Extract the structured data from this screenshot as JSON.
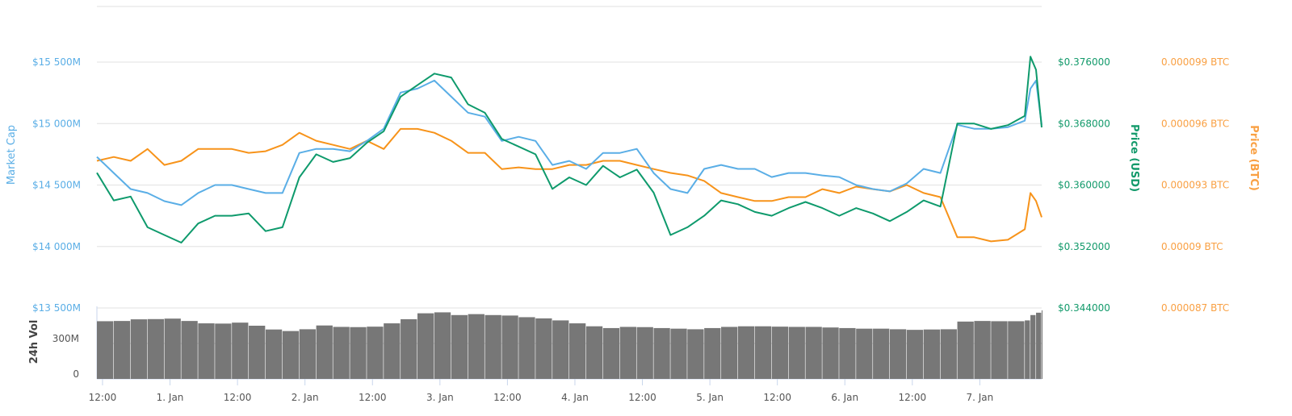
{
  "chart_data": {
    "type": "line",
    "grid": true,
    "legend": "none",
    "colors": {
      "market_cap": "#5aaee6",
      "price_usd": "#0e9a6c",
      "price_btc": "#f7931a",
      "volume": "#777777"
    },
    "x": [
      "Dec 31 11:00",
      "Dec 31 14:00",
      "Dec 31 17:00",
      "Dec 31 20:00",
      "Dec 31 23:00",
      "Jan 1 02:00",
      "Jan 1 05:00",
      "Jan 1 08:00",
      "Jan 1 11:00",
      "Jan 1 14:00",
      "Jan 1 17:00",
      "Jan 1 20:00",
      "Jan 1 23:00",
      "Jan 2 02:00",
      "Jan 2 05:00",
      "Jan 2 08:00",
      "Jan 2 11:00",
      "Jan 2 14:00",
      "Jan 2 17:00",
      "Jan 2 20:00",
      "Jan 2 23:00",
      "Jan 3 02:00",
      "Jan 3 05:00",
      "Jan 3 08:00",
      "Jan 3 11:00",
      "Jan 3 14:00",
      "Jan 3 17:00",
      "Jan 3 20:00",
      "Jan 3 23:00",
      "Jan 4 02:00",
      "Jan 4 05:00",
      "Jan 4 08:00",
      "Jan 4 11:00",
      "Jan 4 14:00",
      "Jan 4 17:00",
      "Jan 4 20:00",
      "Jan 4 23:00",
      "Jan 5 02:00",
      "Jan 5 05:00",
      "Jan 5 08:00",
      "Jan 5 11:00",
      "Jan 5 14:00",
      "Jan 5 17:00",
      "Jan 5 20:00",
      "Jan 5 23:00",
      "Jan 6 02:00",
      "Jan 6 05:00",
      "Jan 6 08:00",
      "Jan 6 11:00",
      "Jan 6 14:00",
      "Jan 6 17:00",
      "Jan 6 20:00",
      "Jan 6 23:00",
      "Jan 7 02:00",
      "Jan 7 05:00",
      "Jan 7 08:00",
      "Jan 7 09:00",
      "Jan 7 10:00",
      "Jan 7 11:00"
    ],
    "x_range": [
      "Dec 31 11:00",
      "Jan 7 11:00"
    ],
    "x_ticks": [
      {
        "at": "Dec 31 12:00",
        "label": "12:00"
      },
      {
        "at": "Jan 1 00:00",
        "label": "1. Jan"
      },
      {
        "at": "Jan 1 12:00",
        "label": "12:00"
      },
      {
        "at": "Jan 2 00:00",
        "label": "2. Jan"
      },
      {
        "at": "Jan 2 12:00",
        "label": "12:00"
      },
      {
        "at": "Jan 3 00:00",
        "label": "3. Jan"
      },
      {
        "at": "Jan 3 12:00",
        "label": "12:00"
      },
      {
        "at": "Jan 4 00:00",
        "label": "4. Jan"
      },
      {
        "at": "Jan 4 12:00",
        "label": "12:00"
      },
      {
        "at": "Jan 5 00:00",
        "label": "5. Jan"
      },
      {
        "at": "Jan 5 12:00",
        "label": "12:00"
      },
      {
        "at": "Jan 6 00:00",
        "label": "6. Jan"
      },
      {
        "at": "Jan 6 12:00",
        "label": "12:00"
      },
      {
        "at": "Jan 7 00:00",
        "label": "7. Jan"
      }
    ],
    "axes": {
      "market_cap": {
        "label": "Market Cap",
        "range": [
          13500,
          15500
        ],
        "unit": "M USD",
        "ticks": [
          {
            "v": 13500,
            "label": "$13 500M"
          },
          {
            "v": 14000,
            "label": "$14 000M"
          },
          {
            "v": 14500,
            "label": "$14 500M"
          },
          {
            "v": 15000,
            "label": "$15 000M"
          },
          {
            "v": 15500,
            "label": "$15 500M"
          }
        ]
      },
      "price_usd": {
        "label": "Price (USD)",
        "range": [
          0.344,
          0.376
        ],
        "ticks": [
          {
            "v": 0.344,
            "label": "$0.344000"
          },
          {
            "v": 0.352,
            "label": "$0.352000"
          },
          {
            "v": 0.36,
            "label": "$0.360000"
          },
          {
            "v": 0.368,
            "label": "$0.368000"
          },
          {
            "v": 0.376,
            "label": "$0.376000"
          }
        ]
      },
      "price_btc": {
        "label": "Price (BTC)",
        "range": [
          8.7e-05,
          9.9e-05
        ],
        "ticks": [
          {
            "v": 8.7e-05,
            "label": "0.000087 BTC"
          },
          {
            "v": 9e-05,
            "label": "0.00009 BTC"
          },
          {
            "v": 9.3e-05,
            "label": "0.000093 BTC"
          },
          {
            "v": 9.6e-05,
            "label": "0.000096 BTC"
          },
          {
            "v": 9.9e-05,
            "label": "0.000099 BTC"
          }
        ]
      },
      "volume": {
        "label": "24h Vol",
        "unit": "M USD",
        "ticks": [
          {
            "v": 0,
            "label": "0"
          },
          {
            "v": 300,
            "label": "300M"
          }
        ]
      }
    },
    "series": [
      {
        "key": "market_cap",
        "axis": "market_cap",
        "values": [
          14729,
          14598,
          14467,
          14435,
          14369,
          14337,
          14435,
          14500,
          14500,
          14467,
          14435,
          14435,
          14761,
          14794,
          14794,
          14775,
          14859,
          14958,
          15252,
          15284,
          15350,
          15219,
          15088,
          15056,
          14859,
          14892,
          14859,
          14663,
          14696,
          14631,
          14761,
          14761,
          14794,
          14598,
          14467,
          14435,
          14631,
          14663,
          14631,
          14631,
          14565,
          14598,
          14598,
          14578,
          14565,
          14500,
          14467,
          14448,
          14513,
          14631,
          14598,
          14990,
          14958,
          14958,
          14971,
          15023,
          15284,
          15350,
          14990
        ]
      },
      {
        "key": "price_usd",
        "axis": "price_usd",
        "values": [
          0.3616,
          0.358,
          0.3585,
          0.3545,
          0.3535,
          0.3525,
          0.355,
          0.356,
          0.356,
          0.3563,
          0.354,
          0.3545,
          0.361,
          0.364,
          0.363,
          0.3635,
          0.3655,
          0.367,
          0.3715,
          0.373,
          0.3745,
          0.374,
          0.3705,
          0.3694,
          0.366,
          0.365,
          0.364,
          0.3595,
          0.361,
          0.36,
          0.3625,
          0.361,
          0.362,
          0.359,
          0.3535,
          0.3545,
          0.356,
          0.358,
          0.3575,
          0.3565,
          0.356,
          0.357,
          0.3578,
          0.357,
          0.356,
          0.357,
          0.3563,
          0.3553,
          0.3565,
          0.358,
          0.3572,
          0.368,
          0.368,
          0.3673,
          0.3678,
          0.369,
          0.3767,
          0.375,
          0.3675
        ]
      },
      {
        "key": "price_btc",
        "axis": "price_btc",
        "values": [
          9.418e-05,
          9.437e-05,
          9.418e-05,
          9.476e-05,
          9.398e-05,
          9.418e-05,
          9.476e-05,
          9.476e-05,
          9.476e-05,
          9.457e-05,
          9.465e-05,
          9.496e-05,
          9.555e-05,
          9.516e-05,
          9.496e-05,
          9.476e-05,
          9.516e-05,
          9.476e-05,
          9.574e-05,
          9.574e-05,
          9.555e-05,
          9.516e-05,
          9.457e-05,
          9.457e-05,
          9.378e-05,
          9.386e-05,
          9.378e-05,
          9.378e-05,
          9.398e-05,
          9.398e-05,
          9.418e-05,
          9.418e-05,
          9.398e-05,
          9.378e-05,
          9.359e-05,
          9.347e-05,
          9.32e-05,
          9.261e-05,
          9.241e-05,
          9.222e-05,
          9.222e-05,
          9.241e-05,
          9.241e-05,
          9.28e-05,
          9.261e-05,
          9.292e-05,
          9.28e-05,
          9.269e-05,
          9.3e-05,
          9.261e-05,
          9.241e-05,
          9.045e-05,
          9.045e-05,
          9.025e-05,
          9.033e-05,
          9.084e-05,
          9.261e-05,
          9.222e-05,
          9.143e-05
        ]
      },
      {
        "key": "volume",
        "axis": "volume",
        "type": "bar",
        "values": [
          488,
          490,
          504,
          506,
          510,
          490,
          470,
          468,
          476,
          450,
          418,
          405,
          420,
          452,
          440,
          438,
          442,
          470,
          505,
          555,
          563,
          540,
          548,
          540,
          536,
          522,
          512,
          495,
          470,
          445,
          430,
          440,
          438,
          430,
          425,
          420,
          430,
          440,
          445,
          445,
          442,
          440,
          440,
          435,
          430,
          425,
          425,
          420,
          415,
          418,
          420,
          485,
          490,
          488,
          488,
          495,
          540,
          560,
          580
        ]
      }
    ]
  }
}
